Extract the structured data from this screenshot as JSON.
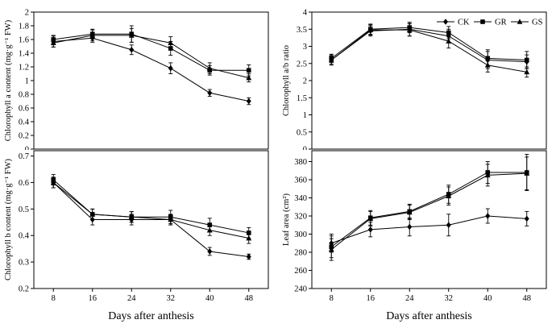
{
  "figure": {
    "xlabel": "Days after anthesis",
    "background": "#ffffff",
    "axis_color": "#000000",
    "series_color": "#000000",
    "xlim": [
      4,
      52
    ],
    "x_ticks": [
      8,
      16,
      24,
      32,
      40,
      48
    ],
    "legend": {
      "position": "top-right-of-ratio-plot",
      "items": [
        {
          "label": "CK",
          "marker": "diamond"
        },
        {
          "label": "GR",
          "marker": "square"
        },
        {
          "label": "GS",
          "marker": "triangle"
        }
      ]
    }
  },
  "chart_data": [
    {
      "id": "chlorophyll-a",
      "type": "line",
      "position": "top-left",
      "ylabel": "Chlorophyll a content (mg·g⁻¹ FW)",
      "ylim": [
        0,
        2
      ],
      "yticks": [
        0,
        0.2,
        0.4,
        0.6,
        0.8,
        1,
        1.2,
        1.4,
        1.6,
        1.8,
        2
      ],
      "x": [
        8,
        16,
        24,
        32,
        40,
        48
      ],
      "error_bars": true,
      "series": [
        {
          "name": "CK",
          "marker": "diamond",
          "values": [
            1.57,
            1.62,
            1.45,
            1.18,
            0.82,
            0.7
          ],
          "errors": [
            0.08,
            0.06,
            0.07,
            0.08,
            0.05,
            0.05
          ]
        },
        {
          "name": "GR",
          "marker": "square",
          "values": [
            1.6,
            1.68,
            1.68,
            1.47,
            1.15,
            1.15
          ],
          "errors": [
            0.06,
            0.07,
            0.12,
            0.1,
            0.07,
            0.08
          ]
        },
        {
          "name": "GS",
          "marker": "triangle",
          "values": [
            1.55,
            1.66,
            1.66,
            1.55,
            1.18,
            1.04
          ],
          "errors": [
            0.06,
            0.08,
            0.1,
            0.09,
            0.08,
            0.06
          ]
        }
      ]
    },
    {
      "id": "chlorophyll-ab-ratio",
      "type": "line",
      "position": "top-right",
      "ylabel": "Chlorophyll a/b ratio",
      "ylim": [
        0,
        4
      ],
      "yticks": [
        0,
        0.5,
        1,
        1.5,
        2,
        2.5,
        3,
        3.5,
        4
      ],
      "x": [
        8,
        16,
        24,
        32,
        40,
        48
      ],
      "error_bars": true,
      "show_legend": true,
      "series": [
        {
          "name": "CK",
          "marker": "diamond",
          "values": [
            2.6,
            3.45,
            3.5,
            3.3,
            2.6,
            2.55
          ],
          "errors": [
            0.15,
            0.15,
            0.2,
            0.2,
            0.25,
            0.2
          ]
        },
        {
          "name": "GR",
          "marker": "square",
          "values": [
            2.65,
            3.5,
            3.55,
            3.4,
            2.65,
            2.6
          ],
          "errors": [
            0.12,
            0.15,
            0.15,
            0.18,
            0.25,
            0.25
          ]
        },
        {
          "name": "GS",
          "marker": "triangle",
          "values": [
            2.6,
            3.48,
            3.48,
            3.15,
            2.45,
            2.25
          ],
          "errors": [
            0.12,
            0.15,
            0.18,
            0.2,
            0.2,
            0.15
          ]
        }
      ]
    },
    {
      "id": "chlorophyll-b",
      "type": "line",
      "position": "bottom-left",
      "ylabel": "Chlorophyll b content (mg·g⁻¹ FW)",
      "ylim": [
        0.2,
        0.72
      ],
      "yticks": [
        0.2,
        0.3,
        0.4,
        0.5,
        0.6,
        0.7
      ],
      "x": [
        8,
        16,
        24,
        32,
        40,
        48
      ],
      "error_bars": true,
      "series": [
        {
          "name": "CK",
          "marker": "diamond",
          "values": [
            0.6,
            0.46,
            0.46,
            0.46,
            0.34,
            0.32
          ],
          "errors": [
            0.02,
            0.02,
            0.02,
            0.02,
            0.015,
            0.01
          ]
        },
        {
          "name": "GR",
          "marker": "square",
          "values": [
            0.61,
            0.48,
            0.47,
            0.47,
            0.44,
            0.41
          ],
          "errors": [
            0.02,
            0.02,
            0.02,
            0.025,
            0.025,
            0.02
          ]
        },
        {
          "name": "GS",
          "marker": "triangle",
          "values": [
            0.6,
            0.48,
            0.47,
            0.46,
            0.42,
            0.39
          ],
          "errors": [
            0.02,
            0.02,
            0.02,
            0.02,
            0.02,
            0.02
          ]
        }
      ]
    },
    {
      "id": "leaf-area",
      "type": "line",
      "position": "bottom-right",
      "ylabel": "Leaf area (cm²)",
      "ylim": [
        240,
        392
      ],
      "yticks": [
        240,
        260,
        280,
        300,
        320,
        340,
        360,
        380
      ],
      "x": [
        8,
        16,
        24,
        32,
        40,
        48
      ],
      "error_bars": true,
      "series": [
        {
          "name": "CK",
          "marker": "diamond",
          "values": [
            290,
            305,
            308,
            310,
            320,
            317
          ],
          "errors": [
            10,
            8,
            10,
            12,
            8,
            8
          ]
        },
        {
          "name": "GR",
          "marker": "square",
          "values": [
            286,
            318,
            325,
            344,
            368,
            368
          ],
          "errors": [
            12,
            8,
            8,
            10,
            12,
            20
          ]
        },
        {
          "name": "GS",
          "marker": "triangle",
          "values": [
            283,
            317,
            324,
            342,
            365,
            367
          ],
          "errors": [
            12,
            8,
            8,
            10,
            12,
            18
          ]
        }
      ]
    }
  ]
}
